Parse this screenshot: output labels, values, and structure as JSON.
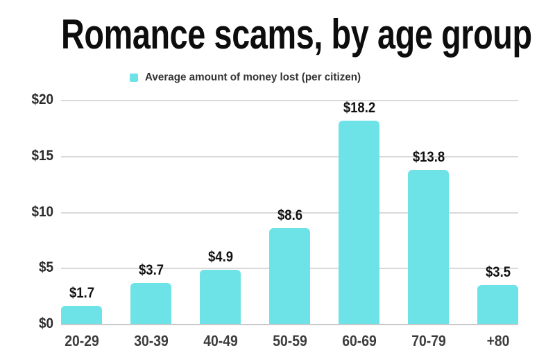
{
  "chart": {
    "title": "Romance scams, by age group",
    "legend_label": "Average amount of money lost (per citizen)"
  },
  "chart_data": {
    "type": "bar",
    "title": "Romance scams, by age group",
    "legend": [
      "Average amount of money lost (per citizen)"
    ],
    "legend_position": "top-center",
    "categories": [
      "20-29",
      "30-39",
      "40-49",
      "50-59",
      "60-69",
      "70-79",
      "+80"
    ],
    "values": [
      1.7,
      3.7,
      4.9,
      8.6,
      18.2,
      13.8,
      3.5
    ],
    "value_labels": [
      "$1.7",
      "$3.7",
      "$4.9",
      "$8.6",
      "$18.2",
      "$13.8",
      "$3.5"
    ],
    "xlabel": "",
    "ylabel": "",
    "ylim": [
      0,
      20
    ],
    "yticks": [
      0,
      5,
      10,
      15,
      20
    ],
    "ytick_labels": [
      "$0",
      "$5",
      "$10",
      "$15",
      "$20"
    ],
    "grid": "horizontal",
    "colors": {
      "bar": "#6ee3e7",
      "gridline": "#d9d9d9",
      "baseline": "#c9c9c9",
      "title": "#0d0d0d",
      "value_label": "#111111",
      "ytick_label": "#2b2b2b",
      "xtick_label": "#3c3c3c",
      "legend_text": "#333333",
      "background": "#ffffff"
    }
  }
}
